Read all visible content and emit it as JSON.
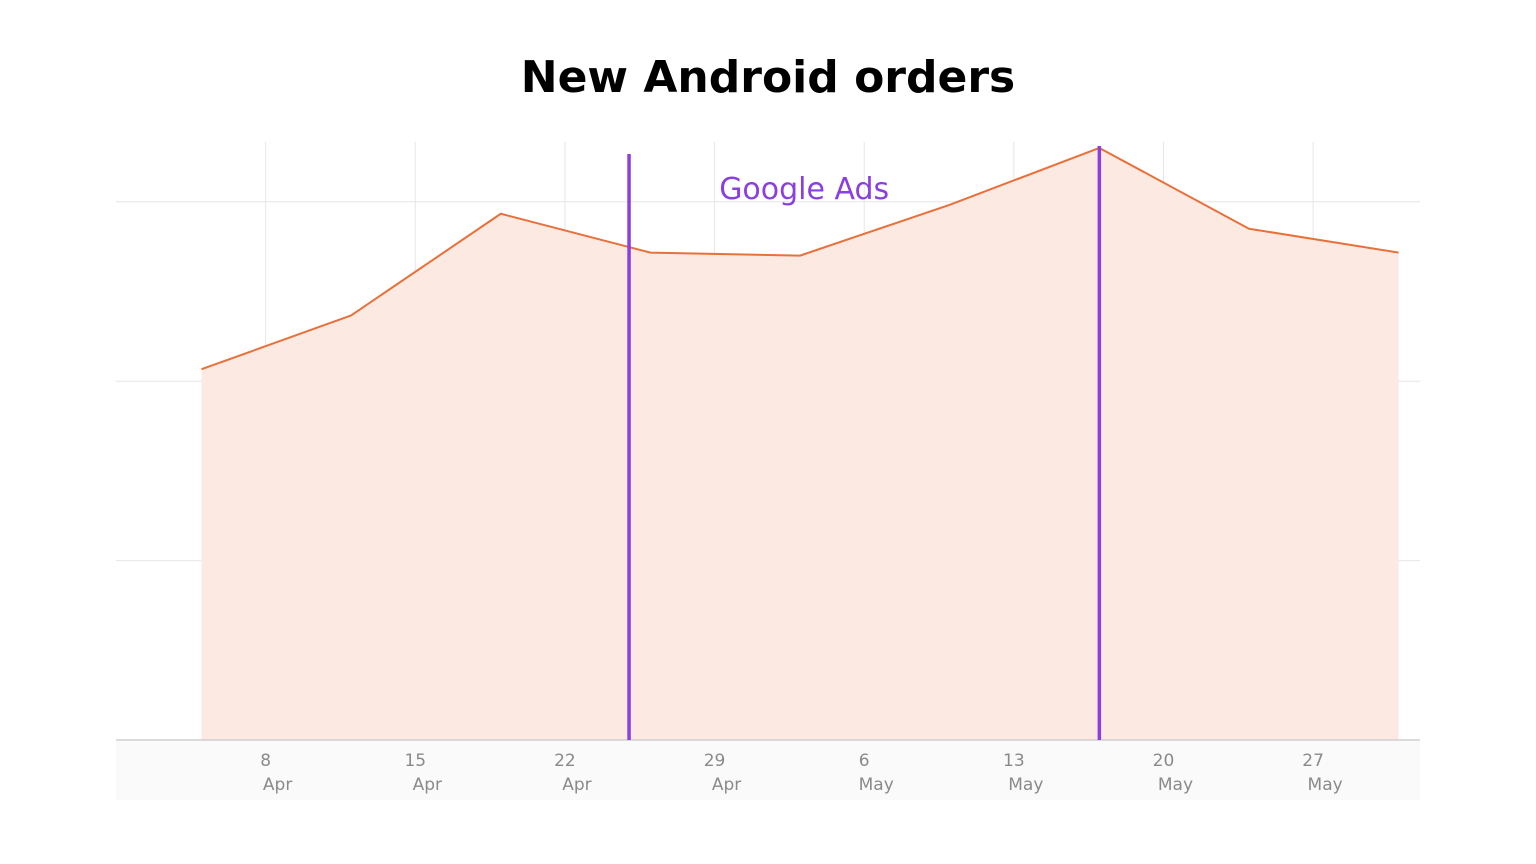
{
  "title": "New Android orders",
  "chart_data": {
    "type": "area",
    "title": "New Android orders",
    "xlabel": "",
    "ylabel": "",
    "grid": true,
    "x_ticks": [
      {
        "date": "2024-04-08",
        "day": "8",
        "month": "Apr"
      },
      {
        "date": "2024-04-15",
        "day": "15",
        "month": "Apr"
      },
      {
        "date": "2024-04-22",
        "day": "22",
        "month": "Apr"
      },
      {
        "date": "2024-04-29",
        "day": "29",
        "month": "Apr"
      },
      {
        "date": "2024-05-06",
        "day": "6",
        "month": "May"
      },
      {
        "date": "2024-05-13",
        "day": "13",
        "month": "May"
      },
      {
        "date": "2024-05-20",
        "day": "20",
        "month": "May"
      },
      {
        "date": "2024-05-27",
        "day": "27",
        "month": "May"
      }
    ],
    "x_range": [
      "2024-04-01",
      "2024-06-01"
    ],
    "y_range": [
      0,
      100
    ],
    "y_grid": [
      30,
      60,
      90
    ],
    "series": [
      {
        "x": [
          "2024-04-05",
          "2024-04-12",
          "2024-04-19",
          "2024-04-26",
          "2024-05-03",
          "2024-05-10",
          "2024-05-17",
          "2024-05-24",
          "2024-05-31"
        ],
        "y": [
          62,
          71,
          88,
          81.5,
          81,
          89.5,
          99,
          85.5,
          81.5
        ]
      }
    ],
    "annotations": [
      {
        "text": "Google Ads",
        "start": "2024-04-25",
        "end": "2024-05-17"
      }
    ],
    "colors": {
      "line": "#E8703A",
      "fill": "#FCEAE2",
      "annotation": "#8A3FE0",
      "grid": "#E6E6E6",
      "axis": "#CFCFCF",
      "tick_text": "#8A8A8A",
      "tick_band": "#FAFAFA"
    }
  }
}
